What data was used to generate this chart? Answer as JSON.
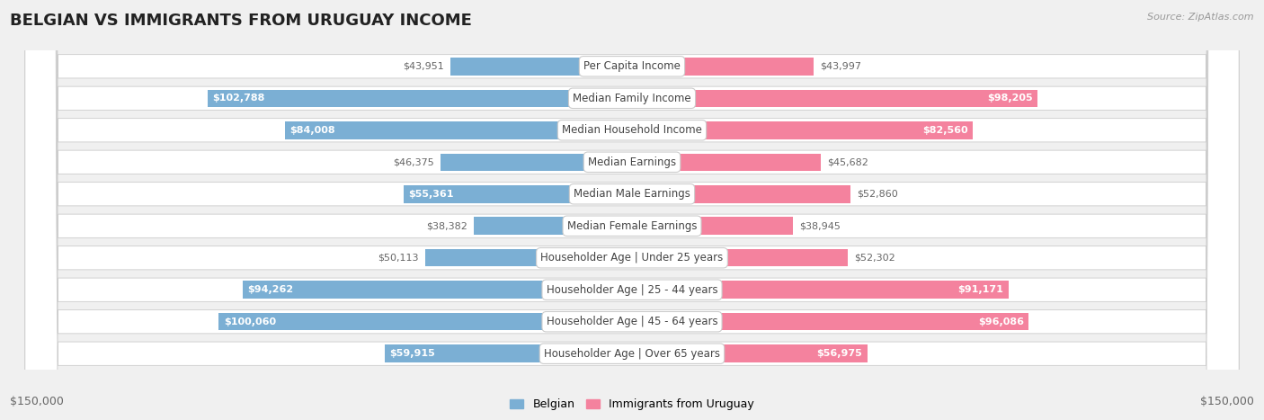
{
  "title": "BELGIAN VS IMMIGRANTS FROM URUGUAY INCOME",
  "source": "Source: ZipAtlas.com",
  "categories": [
    "Per Capita Income",
    "Median Family Income",
    "Median Household Income",
    "Median Earnings",
    "Median Male Earnings",
    "Median Female Earnings",
    "Householder Age | Under 25 years",
    "Householder Age | 25 - 44 years",
    "Householder Age | 45 - 64 years",
    "Householder Age | Over 65 years"
  ],
  "belgian_values": [
    43951,
    102788,
    84008,
    46375,
    55361,
    38382,
    50113,
    94262,
    100060,
    59915
  ],
  "uruguay_values": [
    43997,
    98205,
    82560,
    45682,
    52860,
    38945,
    52302,
    91171,
    96086,
    56975
  ],
  "belgian_labels": [
    "$43,951",
    "$102,788",
    "$84,008",
    "$46,375",
    "$55,361",
    "$38,382",
    "$50,113",
    "$94,262",
    "$100,060",
    "$59,915"
  ],
  "uruguay_labels": [
    "$43,997",
    "$98,205",
    "$82,560",
    "$45,682",
    "$52,860",
    "$38,945",
    "$52,302",
    "$91,171",
    "$96,086",
    "$56,975"
  ],
  "belgian_color": "#7bafd4",
  "uruguay_color": "#f4829e",
  "label_color_outside": "#666666",
  "label_color_inside": "#ffffff",
  "max_value": 150000,
  "background_color": "#f0f0f0",
  "row_background": "#ffffff",
  "row_border": "#cccccc",
  "legend_belgian": "Belgian",
  "legend_uruguay": "Immigrants from Uruguay",
  "axis_label_left": "$150,000",
  "axis_label_right": "$150,000",
  "inside_label_threshold": 55000,
  "title_fontsize": 13,
  "source_fontsize": 8,
  "bar_label_fontsize": 8,
  "cat_label_fontsize": 8.5
}
